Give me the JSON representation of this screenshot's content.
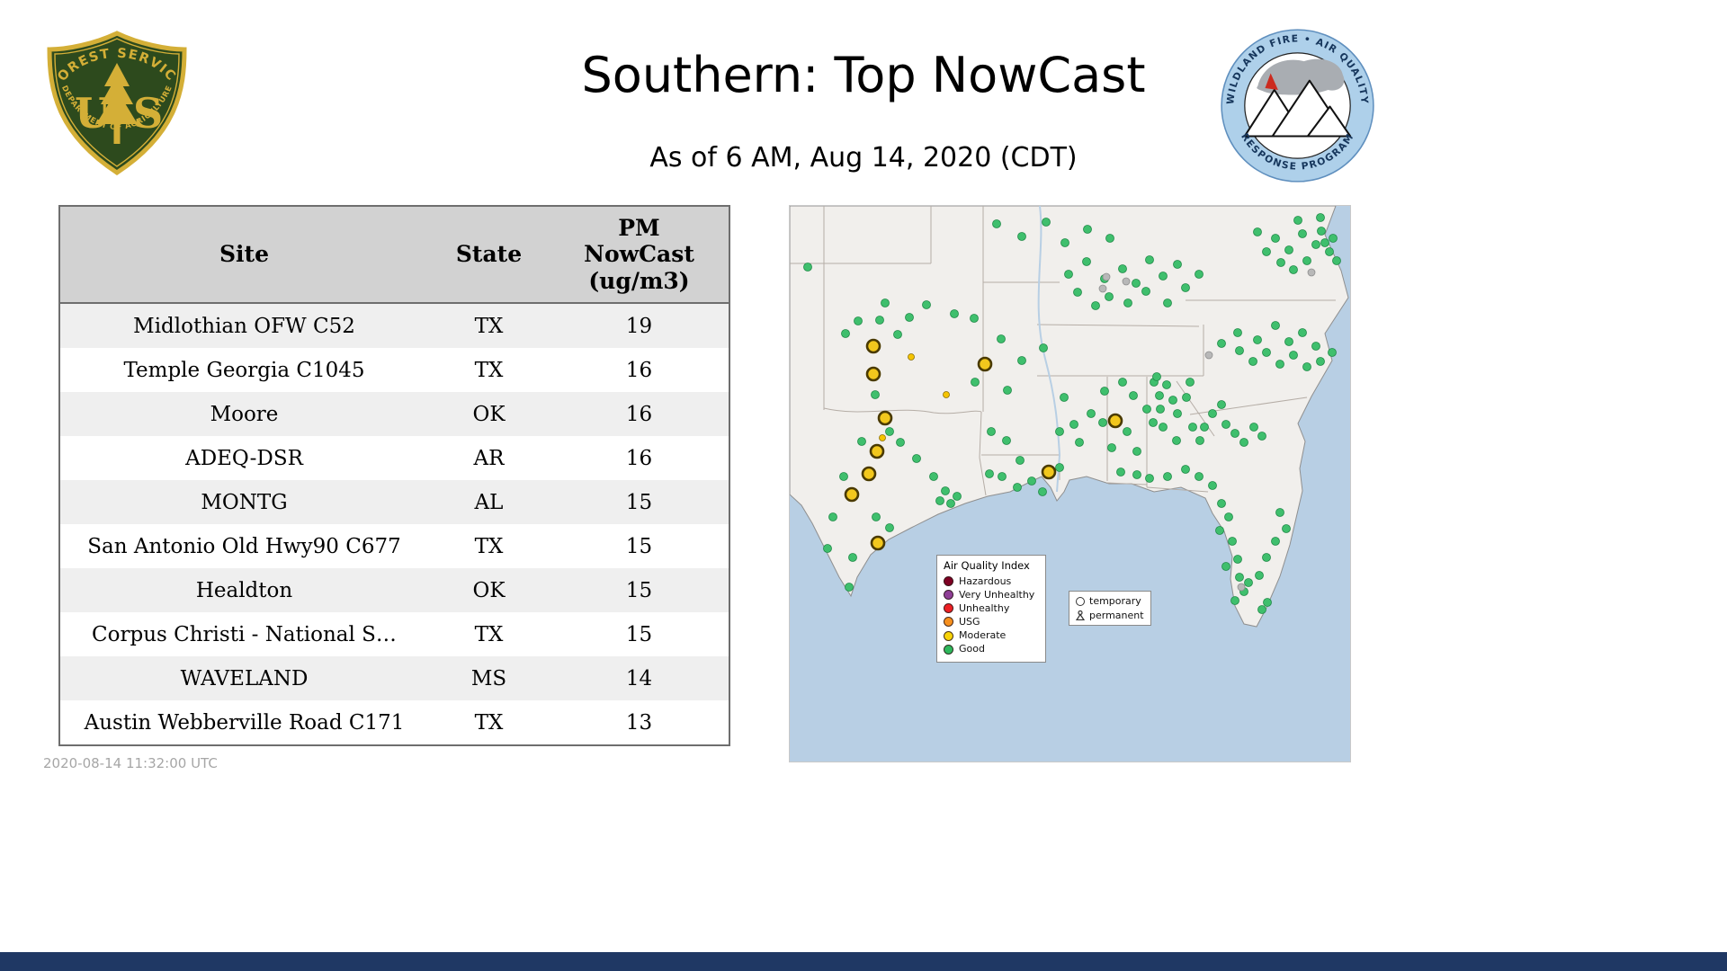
{
  "header": {
    "title": "Southern: Top NowCast",
    "subtitle": "As of  6 AM, Aug 14, 2020 (CDT)"
  },
  "logos": {
    "usfs": {
      "top_text": "FOREST SERVICE",
      "letter_u": "U",
      "letter_s": "S",
      "bottom_text": "DEPARTMENT OF AGRICULTURE"
    },
    "wfaqrp": {
      "top_text": "WILDLAND FIRE • AIR QUALITY",
      "bottom_text": "RESPONSE PROGRAM"
    }
  },
  "table": {
    "columns": [
      "Site",
      "State",
      "PM NowCast (ug/m3)"
    ],
    "pm_header_lines": [
      "PM",
      "NowCast",
      "(ug/m3)"
    ],
    "rows": [
      {
        "site": "Midlothian OFW C52",
        "state": "TX",
        "value": "19"
      },
      {
        "site": "Temple Georgia C1045",
        "state": "TX",
        "value": "16"
      },
      {
        "site": "Moore",
        "state": "OK",
        "value": "16"
      },
      {
        "site": "ADEQ-DSR",
        "state": "AR",
        "value": "16"
      },
      {
        "site": "MONTG",
        "state": "AL",
        "value": "15"
      },
      {
        "site": "San Antonio Old Hwy90 C677",
        "state": "TX",
        "value": "15"
      },
      {
        "site": "Healdton",
        "state": "OK",
        "value": "15"
      },
      {
        "site": "Corpus Christi - National S…",
        "state": "TX",
        "value": "15"
      },
      {
        "site": "WAVELAND",
        "state": "MS",
        "value": "14"
      },
      {
        "site": "Austin Webberville Road C171",
        "state": "TX",
        "value": "13"
      }
    ]
  },
  "map": {
    "colors": {
      "water": "#b8cfe4",
      "land": "#f1efec",
      "state_line": "#b5ada6",
      "good_dot": "#3fbf6d",
      "good_dot_edge": "#1f8a47",
      "gray_dot": "#b8b8b8",
      "gray_dot_edge": "#8f8f8f",
      "moderate_small": "#f5c400",
      "moderate_small_edge": "#8a6d00",
      "moderate_large": "#f2c71d",
      "moderate_large_edge": "#4a3a00"
    },
    "legend": {
      "title": "Air Quality Index",
      "items": [
        {
          "label": "Hazardous",
          "color": "#7e0023"
        },
        {
          "label": "Very Unhealthy",
          "color": "#8f3f97"
        },
        {
          "label": "Unhealthy",
          "color": "#ed2024"
        },
        {
          "label": "USG",
          "color": "#f7901e"
        },
        {
          "label": "Moderate",
          "color": "#f7d308"
        },
        {
          "label": "Good",
          "color": "#2eb85c"
        }
      ]
    },
    "marker_legend": {
      "temporary": "temporary",
      "permanent": "permanent"
    },
    "dots": {
      "green": [
        [
          20,
          68
        ],
        [
          62,
          142
        ],
        [
          76,
          128
        ],
        [
          100,
          127
        ],
        [
          133,
          124
        ],
        [
          120,
          143
        ],
        [
          152,
          110
        ],
        [
          183,
          120
        ],
        [
          106,
          108
        ],
        [
          95,
          210
        ],
        [
          111,
          251
        ],
        [
          80,
          262
        ],
        [
          123,
          263
        ],
        [
          141,
          281
        ],
        [
          160,
          301
        ],
        [
          173,
          317
        ],
        [
          186,
          323
        ],
        [
          179,
          331
        ],
        [
          167,
          328
        ],
        [
          60,
          301
        ],
        [
          48,
          346
        ],
        [
          96,
          346
        ],
        [
          111,
          358
        ],
        [
          42,
          381
        ],
        [
          70,
          391
        ],
        [
          66,
          424
        ],
        [
          206,
          196
        ],
        [
          224,
          251
        ],
        [
          222,
          298
        ],
        [
          236,
          301
        ],
        [
          253,
          313
        ],
        [
          269,
          306
        ],
        [
          281,
          318
        ],
        [
          300,
          291
        ],
        [
          256,
          283
        ],
        [
          241,
          261
        ],
        [
          205,
          125
        ],
        [
          235,
          148
        ],
        [
          258,
          172
        ],
        [
          242,
          205
        ],
        [
          282,
          158
        ],
        [
          230,
          20
        ],
        [
          258,
          34
        ],
        [
          285,
          18
        ],
        [
          306,
          41
        ],
        [
          331,
          26
        ],
        [
          356,
          36
        ],
        [
          310,
          76
        ],
        [
          330,
          62
        ],
        [
          350,
          81
        ],
        [
          370,
          70
        ],
        [
          385,
          86
        ],
        [
          400,
          60
        ],
        [
          415,
          78
        ],
        [
          431,
          65
        ],
        [
          355,
          101
        ],
        [
          376,
          108
        ],
        [
          396,
          95
        ],
        [
          420,
          108
        ],
        [
          440,
          91
        ],
        [
          455,
          76
        ],
        [
          340,
          111
        ],
        [
          320,
          96
        ],
        [
          305,
          213
        ],
        [
          316,
          243
        ],
        [
          322,
          263
        ],
        [
          300,
          251
        ],
        [
          335,
          231
        ],
        [
          350,
          206
        ],
        [
          375,
          251
        ],
        [
          358,
          269
        ],
        [
          382,
          211
        ],
        [
          370,
          196
        ],
        [
          348,
          241
        ],
        [
          386,
          273
        ],
        [
          368,
          296
        ],
        [
          405,
          196
        ],
        [
          411,
          211
        ],
        [
          419,
          199
        ],
        [
          426,
          216
        ],
        [
          412,
          226
        ],
        [
          431,
          231
        ],
        [
          441,
          213
        ],
        [
          448,
          246
        ],
        [
          430,
          261
        ],
        [
          456,
          261
        ],
        [
          415,
          246
        ],
        [
          404,
          241
        ],
        [
          397,
          226
        ],
        [
          445,
          196
        ],
        [
          408,
          190
        ],
        [
          440,
          293
        ],
        [
          455,
          301
        ],
        [
          470,
          311
        ],
        [
          480,
          331
        ],
        [
          488,
          346
        ],
        [
          478,
          361
        ],
        [
          492,
          373
        ],
        [
          498,
          393
        ],
        [
          500,
          413
        ],
        [
          505,
          429
        ],
        [
          495,
          439
        ],
        [
          510,
          419
        ],
        [
          545,
          341
        ],
        [
          552,
          359
        ],
        [
          540,
          373
        ],
        [
          530,
          391
        ],
        [
          522,
          411
        ],
        [
          531,
          441
        ],
        [
          525,
          449
        ],
        [
          420,
          301
        ],
        [
          400,
          303
        ],
        [
          386,
          299
        ],
        [
          485,
          401
        ],
        [
          470,
          231
        ],
        [
          485,
          243
        ],
        [
          495,
          253
        ],
        [
          505,
          263
        ],
        [
          516,
          246
        ],
        [
          480,
          221
        ],
        [
          461,
          246
        ],
        [
          525,
          256
        ],
        [
          500,
          161
        ],
        [
          515,
          173
        ],
        [
          530,
          163
        ],
        [
          545,
          176
        ],
        [
          560,
          166
        ],
        [
          575,
          179
        ],
        [
          555,
          151
        ],
        [
          540,
          133
        ],
        [
          570,
          141
        ],
        [
          585,
          156
        ],
        [
          590,
          173
        ],
        [
          520,
          149
        ],
        [
          498,
          141
        ],
        [
          480,
          153
        ],
        [
          603,
          163
        ],
        [
          540,
          36
        ],
        [
          555,
          49
        ],
        [
          570,
          31
        ],
        [
          585,
          43
        ],
        [
          591,
          28
        ],
        [
          600,
          51
        ],
        [
          575,
          61
        ],
        [
          560,
          71
        ],
        [
          546,
          63
        ],
        [
          530,
          51
        ],
        [
          520,
          29
        ],
        [
          604,
          36
        ],
        [
          565,
          16
        ],
        [
          590,
          13
        ],
        [
          608,
          61
        ],
        [
          595,
          41
        ]
      ],
      "gray": [
        [
          374,
          84
        ],
        [
          352,
          79
        ],
        [
          466,
          166
        ],
        [
          580,
          74
        ],
        [
          502,
          424
        ],
        [
          348,
          92
        ]
      ],
      "yellow_small": [
        [
          135,
          168
        ],
        [
          174,
          210
        ],
        [
          103,
          258
        ]
      ],
      "yellow_large": [
        [
          93,
          156
        ],
        [
          93,
          187
        ],
        [
          217,
          176
        ],
        [
          106,
          236
        ],
        [
          97,
          273
        ],
        [
          88,
          298
        ],
        [
          69,
          321
        ],
        [
          362,
          239
        ],
        [
          288,
          296
        ],
        [
          98,
          375
        ]
      ]
    }
  },
  "footer": {
    "timestamp": "2020-08-14 11:32:00 UTC"
  },
  "chart_data": {
    "type": "table",
    "title": "Southern: Top NowCast",
    "as_of": "As of 6 AM, Aug 14, 2020 (CDT)",
    "columns": [
      "Site",
      "State",
      "PM NowCast (ug/m3)"
    ],
    "rows": [
      [
        "Midlothian OFW C52",
        "TX",
        19
      ],
      [
        "Temple Georgia C1045",
        "TX",
        16
      ],
      [
        "Moore",
        "OK",
        16
      ],
      [
        "ADEQ-DSR",
        "AR",
        16
      ],
      [
        "MONTG",
        "AL",
        15
      ],
      [
        "San Antonio Old Hwy90 C677",
        "TX",
        15
      ],
      [
        "Healdton",
        "OK",
        15
      ],
      [
        "Corpus Christi - National S…",
        "TX",
        15
      ],
      [
        "WAVELAND",
        "MS",
        14
      ],
      [
        "Austin Webberville Road C171",
        "TX",
        13
      ]
    ],
    "map_categories": [
      "Hazardous",
      "Very Unhealthy",
      "Unhealthy",
      "USG",
      "Moderate",
      "Good"
    ]
  }
}
